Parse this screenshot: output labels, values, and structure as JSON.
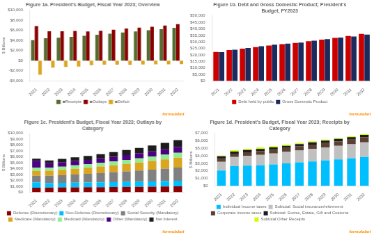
{
  "chart_data": [
    {
      "type": "bar",
      "title": "Figure 1a. President's Budget, Fiscal Year 2023; Overview",
      "categories": [
        "2021",
        "2022",
        "2023",
        "2024",
        "2025",
        "2026",
        "2027",
        "2028",
        "2029",
        "2030",
        "2031",
        "2032"
      ],
      "series": [
        {
          "name": "■Receipts",
          "color": "#556B2F",
          "values": [
            4046,
            4432,
            4545,
            4709,
            4891,
            5098,
            5312,
            5543,
            5764,
            5991,
            6202,
            6502
          ]
        },
        {
          "name": "■Outlays",
          "color": "#8B0000",
          "values": [
            6822,
            5800,
            5790,
            5870,
            5780,
            5900,
            6100,
            6350,
            6520,
            6700,
            6920,
            7200
          ]
        },
        {
          "name": "■Deficit",
          "color": "#DAA520",
          "values": [
            -2776,
            -1376,
            -1245,
            -1161,
            -889,
            -802,
            -788,
            -807,
            -756,
            -709,
            -718,
            -698
          ]
        }
      ],
      "ylabel": "$ Billions",
      "ylim": [
        -4000,
        10000
      ],
      "yticks": [
        {
          "value": -4000,
          "label": "-$4,000"
        },
        {
          "value": -2000,
          "label": "-$2,000"
        },
        {
          "value": 0,
          "label": "$0"
        },
        {
          "value": 2000,
          "label": "$2,000"
        },
        {
          "value": 4000,
          "label": "$4,000"
        },
        {
          "value": 6000,
          "label": "$6,000"
        },
        {
          "value": 8000,
          "label": "$8,000"
        },
        {
          "value": 10000,
          "label": "$10,000"
        }
      ],
      "grid": false,
      "legend": "bottom",
      "annotations": [
        {
          "text": "formulabot",
          "color": "#FF8C00"
        }
      ]
    },
    {
      "type": "bar",
      "title": "Figure 1b. Debt and Gross Domestic Product; President's\nBudget, FY2023",
      "categories": [
        "2021",
        "2022",
        "2023",
        "2024",
        "2025",
        "2026",
        "2027",
        "2028",
        "2029",
        "2030",
        "2031",
        "2032"
      ],
      "series": [
        {
          "name": "Debt held by public",
          "color": "#CC0000",
          "values": [
            22300,
            23750,
            24800,
            26000,
            27200,
            28300,
            29200,
            30600,
            31800,
            33100,
            34500,
            36200
          ]
        },
        {
          "name": "Gross Domestic Product",
          "color": "#1C2A5E",
          "values": [
            22200,
            24000,
            25300,
            26700,
            27900,
            28700,
            29500,
            30900,
            32100,
            33300,
            34200,
            35600
          ]
        }
      ],
      "ylim": [
        0,
        50000
      ],
      "yticks": [
        {
          "value": 0,
          "label": "$0"
        },
        {
          "value": 5000,
          "label": "$5,000"
        },
        {
          "value": 10000,
          "label": "$10,000"
        },
        {
          "value": 15000,
          "label": "$15,000"
        },
        {
          "value": 20000,
          "label": "$20,000"
        },
        {
          "value": 25000,
          "label": "$25,000"
        },
        {
          "value": 30000,
          "label": "$30,000"
        },
        {
          "value": 35000,
          "label": "$35,000"
        },
        {
          "value": 40000,
          "label": "$40,000"
        },
        {
          "value": 45000,
          "label": "$45,000"
        },
        {
          "value": 50000,
          "label": "$50,000"
        }
      ],
      "grid": false,
      "legend": "bottom",
      "annotations": [
        {
          "text": "formulabot",
          "color": "#FF8C00"
        }
      ]
    },
    {
      "type": "bar",
      "title": "Figure 1c. President's Budget, Fiscal Year 2023; Outlays by\nCategory",
      "categories": [
        "2021",
        "2022",
        "2023",
        "2024",
        "2025",
        "2026",
        "2027",
        "2028",
        "2029",
        "2030",
        "2031",
        "2032"
      ],
      "series": [
        {
          "name": "Defense (Discretionary)",
          "color": "#8B0000",
          "values": [
            754,
            782,
            802,
            820,
            837,
            852,
            870,
            889,
            912,
            935,
            961,
            990
          ]
        },
        {
          "name": "Non-Defense (Discretionary)",
          "color": "#00BFFF",
          "values": [
            914,
            783,
            787,
            800,
            810,
            820,
            835,
            852,
            869,
            889,
            910,
            935
          ]
        },
        {
          "name": "Social Security (Mandatory)",
          "color": "#808080",
          "values": [
            1129,
            1219,
            1302,
            1391,
            1479,
            1578,
            1679,
            1783,
            1888,
            2001,
            2120,
            2247
          ]
        },
        {
          "name": "Medicare (Mandatory)",
          "color": "#DAA520",
          "values": [
            829,
            860,
            907,
            980,
            1040,
            1110,
            1190,
            1275,
            1370,
            1472,
            1582,
            1701
          ]
        },
        {
          "name": "Medicaid (Mandatory)",
          "color": "#90EE90",
          "values": [
            521,
            511,
            535,
            565,
            592,
            620,
            652,
            684,
            719,
            755,
            793,
            834
          ]
        },
        {
          "name": "Other (Mandatory)",
          "color": "#4B0082",
          "values": [
            1200,
            780,
            780,
            750,
            740,
            760,
            790,
            820,
            850,
            890,
            930,
            970
          ]
        },
        {
          "name": "Net Interest",
          "color": "#1C1C1C",
          "values": [
            352,
            475,
            534,
            607,
            663,
            724,
            788,
            852,
            923,
            1001,
            1082,
            1167
          ]
        }
      ],
      "stacked": true,
      "ylabel": "$ Billions",
      "ylim": [
        0,
        10000
      ],
      "yticks": [
        {
          "value": 0,
          "label": "$0"
        },
        {
          "value": 1000,
          "label": "$1,000"
        },
        {
          "value": 2000,
          "label": "$2,000"
        },
        {
          "value": 3000,
          "label": "$3,000"
        },
        {
          "value": 4000,
          "label": "$4,000"
        },
        {
          "value": 5000,
          "label": "$5,000"
        },
        {
          "value": 6000,
          "label": "$6,000"
        },
        {
          "value": 7000,
          "label": "$7,000"
        },
        {
          "value": 8000,
          "label": "$8,000"
        },
        {
          "value": 9000,
          "label": "$9,000"
        },
        {
          "value": 10000,
          "label": "$10,000"
        }
      ],
      "grid": false,
      "legend": "bottom",
      "annotations": [
        {
          "text": "formulabot",
          "color": "#FF8C00"
        }
      ]
    },
    {
      "type": "bar",
      "title": "Figure 1d. President's Budget, Fiscal Year 2023; Receipts by\nCategory",
      "categories": [
        "2021",
        "2022",
        "2023",
        "2024",
        "2025",
        "2026",
        "2027",
        "2028",
        "2029",
        "2030",
        "2031",
        "2032"
      ],
      "series": [
        {
          "name": "Individual Income taxes",
          "color": "#00BFFF",
          "values": [
            2052,
            2632,
            2705,
            2748,
            2856,
            3000,
            3133,
            3267,
            3399,
            3538,
            3666,
            3852
          ]
        },
        {
          "name": "Subtotal: Social insurance/retirement",
          "color": "#C0C0C0",
          "values": [
            1170,
            1230,
            1305,
            1390,
            1457,
            1520,
            1590,
            1660,
            1730,
            1805,
            1875,
            1960
          ]
        },
        {
          "name": "Corporate income taxes",
          "color": "#5C4033",
          "values": [
            402,
            425,
            480,
            510,
            524,
            536,
            551,
            569,
            589,
            607,
            630,
            655
          ]
        },
        {
          "name": "Subtotal: Excise, Estate, Gift and Customs",
          "color": "#1C1C1C",
          "values": [
            317,
            298,
            290,
            285,
            283,
            288,
            294,
            301,
            308,
            315,
            323,
            332
          ]
        },
        {
          "name": "Subtotal:Other Receipts",
          "color": "#CCFF00",
          "values": [
            105,
            147,
            165,
            176,
            171,
            154,
            144,
            146,
            138,
            126,
            108,
            103
          ]
        }
      ],
      "stacked": true,
      "ylabel": "$ Billions",
      "ylim": [
        0,
        7000
      ],
      "yticks": [
        {
          "value": 0,
          "label": "$0"
        },
        {
          "value": 1000,
          "label": "$1,000"
        },
        {
          "value": 2000,
          "label": "$2,000"
        },
        {
          "value": 3000,
          "label": "$3,000"
        },
        {
          "value": 4000,
          "label": "$4,000"
        },
        {
          "value": 5000,
          "label": "$5,000"
        },
        {
          "value": 6000,
          "label": "$6,000"
        },
        {
          "value": 7000,
          "label": "$7,000"
        }
      ],
      "grid": false,
      "legend": "bottom",
      "annotations": [
        {
          "text": "formulabot",
          "color": "#FF8C00"
        }
      ]
    }
  ]
}
